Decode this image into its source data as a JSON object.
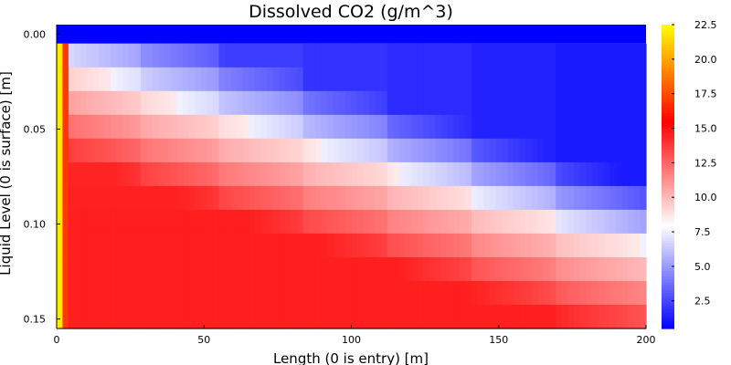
{
  "chart_data": {
    "type": "heatmap",
    "title": "Dissolved CO2 (g/m^3)",
    "xlabel": "Length (0 is entry) [m]",
    "ylabel": "Liquid Level (0 is surface) [m]",
    "xlim": [
      0,
      200
    ],
    "ylim": [
      0.155,
      -0.005
    ],
    "x_ticks": [
      0,
      50,
      100,
      150,
      200
    ],
    "x_tick_labels": [
      "0",
      "50",
      "100",
      "150",
      "200"
    ],
    "y_ticks": [
      0.0,
      0.05,
      0.1,
      0.15
    ],
    "y_tick_labels": [
      "0.00",
      "0.05",
      "0.10",
      "0.15"
    ],
    "colorbar": {
      "range": [
        0.5,
        22.5
      ],
      "ticks": [
        2.5,
        5.0,
        7.5,
        10.0,
        12.5,
        15.0,
        17.5,
        20.0,
        22.5
      ],
      "tick_labels": [
        "2.5",
        "5.0",
        "7.5",
        "10.0",
        "12.5",
        "15.0",
        "17.5",
        "20.0",
        "22.5"
      ],
      "colormap": [
        "#0000ff",
        "#ffffff",
        "#ff0000",
        "#ffff00"
      ]
    },
    "surface_row": {
      "depth": 0.0,
      "value": 0.5
    },
    "depth_rows": [
      0.0125,
      0.025,
      0.0375,
      0.05,
      0.0625,
      0.075,
      0.0875,
      0.1,
      0.1125,
      0.125,
      0.1375,
      0.15
    ],
    "stage_boundaries": [
      0,
      2,
      4,
      28,
      55,
      83,
      113,
      141,
      170,
      200
    ],
    "inlet_value": 22.0,
    "grid": false
  }
}
